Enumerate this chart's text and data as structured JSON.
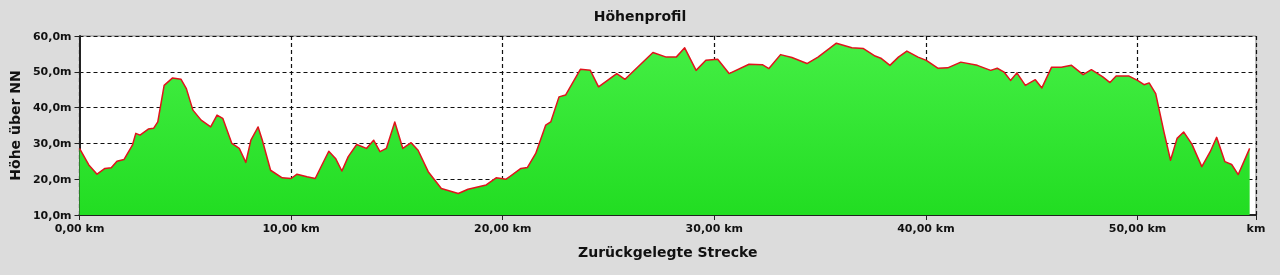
{
  "chart_data": {
    "type": "area",
    "title": "Höhenprofil",
    "xlabel": "Zurückgelegte Strecke",
    "ylabel": "Höhe über NN",
    "x": [
      0,
      0.44,
      0.83,
      1.2,
      1.5,
      1.77,
      2.1,
      2.5,
      2.66,
      2.86,
      3.25,
      3.5,
      3.7,
      4.0,
      4.4,
      4.8,
      5.05,
      5.36,
      5.75,
      6.2,
      6.5,
      6.77,
      7.2,
      7.55,
      7.86,
      8.1,
      8.44,
      8.64,
      9.03,
      9.58,
      10,
      10.28,
      10.75,
      11.14,
      11.45,
      11.78,
      12.1,
      12.4,
      12.7,
      13.1,
      13.56,
      13.9,
      14.2,
      14.5,
      14.9,
      15.28,
      15.67,
      16,
      16.48,
      17.1,
      17.9,
      18.36,
      19.22,
      19.69,
      20.16,
      20.86,
      21.17,
      21.56,
      22.03,
      22.27,
      22.66,
      22.97,
      23.67,
      24.14,
      24.53,
      25.39,
      25.78,
      27.1,
      27.73,
      28.2,
      28.6,
      29.14,
      29.6,
      30.16,
      30.7,
      31.64,
      32.27,
      32.58,
      33.13,
      33.67,
      34.38,
      34.9,
      35.77,
      36.5,
      37.05,
      37.6,
      37.9,
      38.3,
      38.7,
      39.1,
      39.63,
      40.02,
      40.56,
      41.03,
      41.65,
      42.43,
      43.06,
      43.37,
      43.68,
      44,
      44.3,
      44.7,
      45.17,
      45.48,
      45.94,
      46.4,
      46.88,
      47.43,
      47.82,
      48.36,
      48.7,
      48.99,
      49.6,
      50,
      50.31,
      50.55,
      50.86,
      51.25,
      51.56,
      51.87,
      52.18,
      52.57,
      53.04,
      53.43,
      53.74,
      54.13,
      54.45,
      54.76,
      55.3
    ],
    "series": [
      {
        "color": "#44ee44",
        "values": [
          28.6,
          24,
          21.4,
          23,
          23.2,
          25,
          25.5,
          29.5,
          32.8,
          32.3,
          34,
          34.2,
          36,
          46.2,
          48.3,
          47.9,
          45.3,
          39.3,
          36.5,
          34.6,
          37.9,
          37,
          30,
          28.6,
          24.7,
          30.9,
          34.6,
          30.9,
          22.5,
          20.4,
          20.2,
          21.4,
          20.7,
          20.2,
          23.9,
          27.8,
          25.8,
          22.3,
          26.3,
          29.7,
          28.6,
          30.9,
          27.7,
          28.6,
          36,
          28.6,
          30.2,
          28.1,
          22.1,
          17.4,
          16,
          17.2,
          18.4,
          20.4,
          20,
          23,
          23.3,
          27.2,
          35.1,
          36,
          43,
          43.5,
          50.7,
          50.4,
          45.8,
          49.5,
          47.9,
          55.4,
          54.1,
          54.1,
          56.7,
          50.4,
          53.2,
          53.5,
          49.5,
          52.1,
          52,
          50.9,
          54.8,
          54,
          52.3,
          54.1,
          58,
          56.7,
          56.5,
          54.4,
          53.7,
          51.8,
          54.1,
          55.8,
          54.1,
          53.2,
          51,
          51.1,
          52.7,
          51.8,
          50.4,
          51,
          50,
          47.6,
          49.7,
          46.2,
          47.8,
          45.5,
          51.3,
          51.3,
          51.8,
          49.2,
          50.6,
          48.6,
          47,
          48.8,
          48.8,
          47.6,
          46.4,
          46.9,
          43.9,
          33.2,
          25.3,
          31.4,
          33.2,
          29.8,
          23.5,
          27.6,
          31.7,
          24.9,
          24.1,
          21.3,
          28.6
        ]
      }
    ],
    "xlim": [
      0,
      55.6
    ],
    "xticks": [
      {
        "value": 0,
        "label": "0,00 km"
      },
      {
        "value": 10,
        "label": "10,00 km"
      },
      {
        "value": 20,
        "label": "20,00 km"
      },
      {
        "value": 30,
        "label": "30,00 km"
      },
      {
        "value": 40,
        "label": "40,00 km"
      },
      {
        "value": 50,
        "label": "50,00 km"
      },
      {
        "value": 55.6,
        "label": "km"
      }
    ],
    "ylim": [
      10,
      60
    ],
    "yticks": [
      {
        "value": 10,
        "label": "10,0m"
      },
      {
        "value": 20,
        "label": "20,0m"
      },
      {
        "value": 30,
        "label": "30,0m"
      },
      {
        "value": 40,
        "label": "40,0m"
      },
      {
        "value": 50,
        "label": "50,0m"
      },
      {
        "value": 60,
        "label": "60,0m"
      }
    ],
    "grid": true,
    "marker": "none",
    "line_style": "solid"
  }
}
